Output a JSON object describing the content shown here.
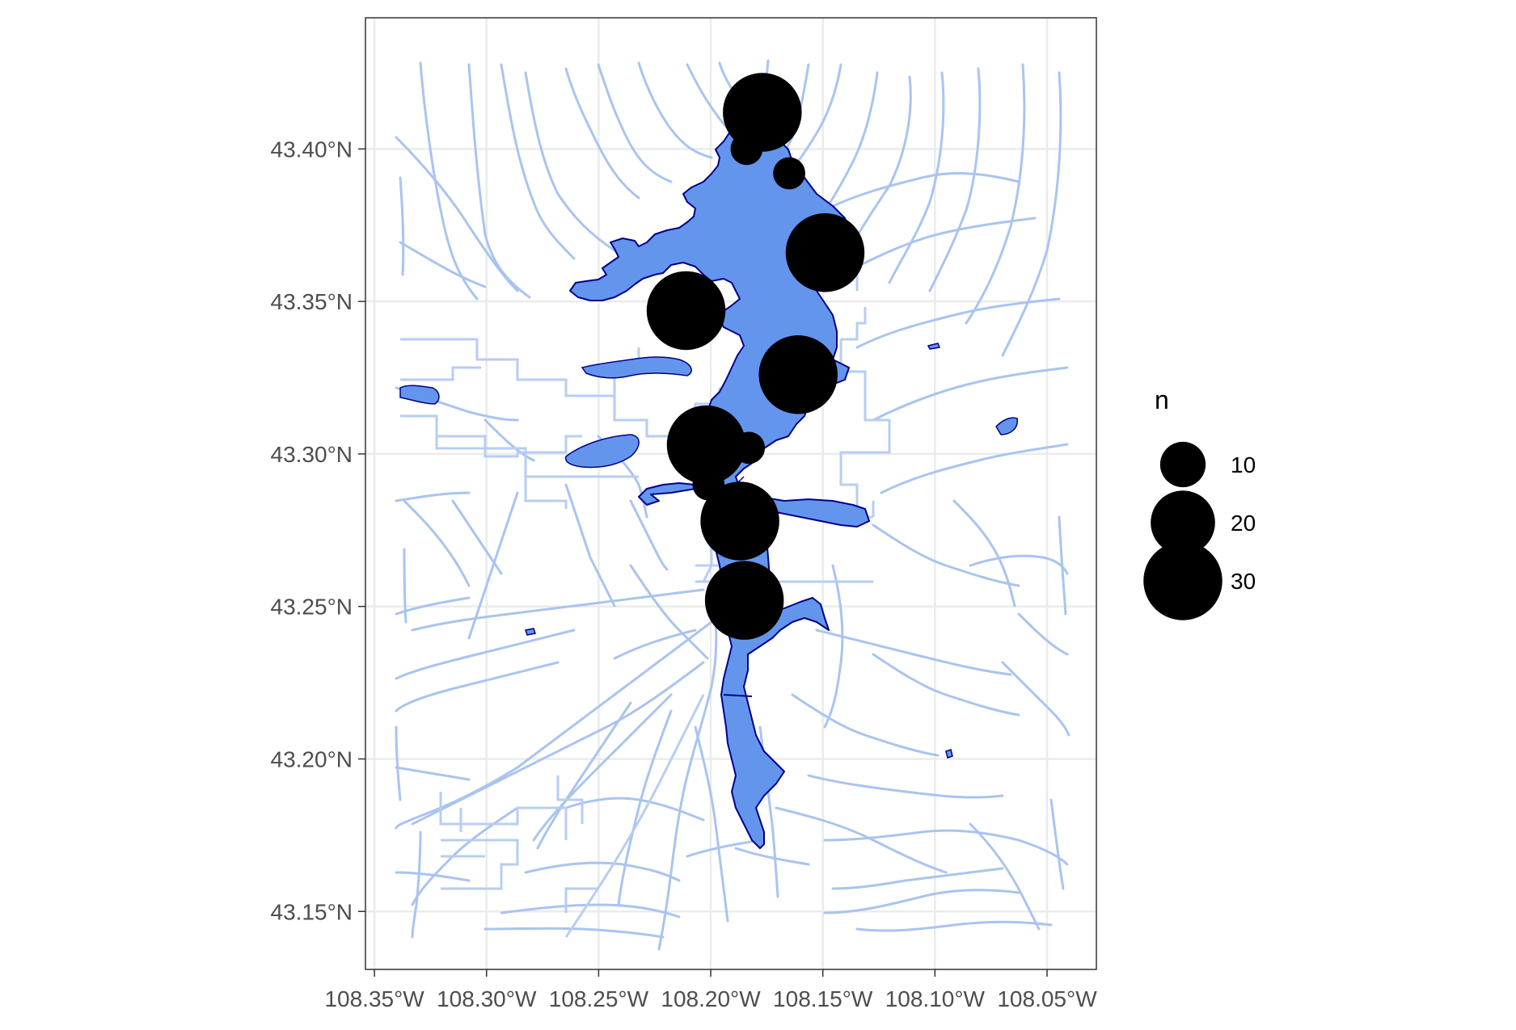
{
  "colors": {
    "water_fill": "#6495ed",
    "water_outline": "#00008b",
    "streams": "#a9c4f0",
    "points": "#000000",
    "grid": "#ebebeb",
    "panel_border": "#333333"
  },
  "map": {
    "x_axis": {
      "ticks": [
        -108.35,
        -108.3,
        -108.25,
        -108.2,
        -108.15,
        -108.1,
        -108.05
      ],
      "labels": [
        "108.35°W",
        "108.30°W",
        "108.25°W",
        "108.20°W",
        "108.15°W",
        "108.10°W",
        "108.05°W"
      ]
    },
    "y_axis": {
      "ticks": [
        43.4,
        43.35,
        43.3,
        43.25,
        43.2,
        43.15
      ],
      "labels": [
        "43.40°N",
        "43.35°N",
        "43.30°N",
        "43.25°N",
        "43.20°N",
        "43.15°N"
      ]
    },
    "xlim": [
      -108.354,
      -108.028
    ],
    "ylim": [
      43.131,
      43.443
    ],
    "points": [
      {
        "lon": -108.177,
        "lat": 43.412,
        "n": 30
      },
      {
        "lon": -108.184,
        "lat": 43.4,
        "n": 5
      },
      {
        "lon": -108.165,
        "lat": 43.392,
        "n": 5
      },
      {
        "lon": -108.149,
        "lat": 43.366,
        "n": 30
      },
      {
        "lon": -108.211,
        "lat": 43.347,
        "n": 30
      },
      {
        "lon": -108.161,
        "lat": 43.326,
        "n": 30
      },
      {
        "lon": -108.202,
        "lat": 43.303,
        "n": 30
      },
      {
        "lon": -108.183,
        "lat": 43.302,
        "n": 5
      },
      {
        "lon": -108.201,
        "lat": 43.29,
        "n": 5
      },
      {
        "lon": -108.187,
        "lat": 43.278,
        "n": 30
      },
      {
        "lon": -108.185,
        "lat": 43.252,
        "n": 30
      }
    ]
  },
  "legend": {
    "title": "n",
    "items": [
      {
        "value": 10,
        "label": "10"
      },
      {
        "value": 20,
        "label": "20"
      },
      {
        "value": 30,
        "label": "30"
      }
    ]
  }
}
